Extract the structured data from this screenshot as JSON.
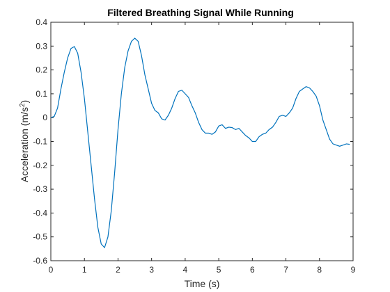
{
  "chart_data": {
    "type": "line",
    "title": "Filtered Breathing Signal While Running",
    "xlabel": "Time (s)",
    "ylabel_main": "Acceleration (m/s",
    "ylabel_sup": "2",
    "ylabel_close": ")",
    "xlim": [
      0,
      9
    ],
    "ylim": [
      -0.6,
      0.4
    ],
    "x_ticks": [
      "0",
      "1",
      "2",
      "3",
      "4",
      "5",
      "6",
      "7",
      "8",
      "9"
    ],
    "y_ticks": [
      "-0.6",
      "-0.5",
      "-0.4",
      "-0.3",
      "-0.2",
      "-0.1",
      "0",
      "0.1",
      "0.2",
      "0.3",
      "0.4"
    ],
    "grid": false,
    "line_color": "#0072BD",
    "series": [
      {
        "x": [
          0,
          0.1,
          0.2,
          0.3,
          0.4,
          0.5,
          0.6,
          0.7,
          0.8,
          0.9,
          1.0,
          1.1,
          1.2,
          1.3,
          1.4,
          1.5,
          1.6,
          1.7,
          1.8,
          1.9,
          2.0,
          2.1,
          2.2,
          2.3,
          2.4,
          2.5,
          2.6,
          2.7,
          2.8,
          2.9,
          3.0,
          3.1,
          3.2,
          3.3,
          3.4,
          3.5,
          3.6,
          3.7,
          3.8,
          3.9,
          4.0,
          4.1,
          4.2,
          4.3,
          4.4,
          4.5,
          4.6,
          4.7,
          4.8,
          4.9,
          5.0,
          5.1,
          5.2,
          5.3,
          5.4,
          5.5,
          5.6,
          5.7,
          5.8,
          5.9,
          6.0,
          6.1,
          6.2,
          6.3,
          6.4,
          6.5,
          6.6,
          6.7,
          6.8,
          6.9,
          7.0,
          7.1,
          7.2,
          7.3,
          7.4,
          7.5,
          7.6,
          7.7,
          7.8,
          7.9,
          8.0,
          8.1,
          8.2,
          8.3,
          8.4,
          8.5,
          8.6,
          8.7,
          8.8,
          8.9
        ],
        "y": [
          0,
          0.005,
          0.04,
          0.12,
          0.19,
          0.25,
          0.29,
          0.298,
          0.27,
          0.19,
          0.08,
          -0.06,
          -0.2,
          -0.34,
          -0.46,
          -0.53,
          -0.545,
          -0.5,
          -0.39,
          -0.23,
          -0.05,
          0.1,
          0.21,
          0.28,
          0.32,
          0.333,
          0.32,
          0.26,
          0.18,
          0.12,
          0.06,
          0.03,
          0.02,
          -0.005,
          -0.01,
          0.01,
          0.04,
          0.08,
          0.11,
          0.115,
          0.1,
          0.085,
          0.05,
          0.02,
          -0.02,
          -0.05,
          -0.065,
          -0.065,
          -0.07,
          -0.06,
          -0.035,
          -0.03,
          -0.045,
          -0.04,
          -0.042,
          -0.05,
          -0.045,
          -0.06,
          -0.075,
          -0.085,
          -0.1,
          -0.1,
          -0.08,
          -0.07,
          -0.065,
          -0.05,
          -0.04,
          -0.02,
          0.005,
          0.01,
          0.005,
          0.02,
          0.04,
          0.08,
          0.11,
          0.12,
          0.13,
          0.125,
          0.11,
          0.09,
          0.05,
          -0.01,
          -0.05,
          -0.09,
          -0.11,
          -0.115,
          -0.12,
          -0.115,
          -0.11,
          -0.112
        ]
      }
    ]
  }
}
